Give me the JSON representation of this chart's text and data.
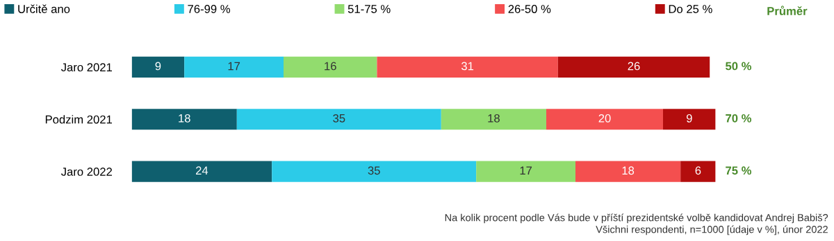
{
  "chart_data": {
    "type": "bar",
    "orientation": "horizontal",
    "stacked": true,
    "data_labels": true,
    "legend": "top",
    "grid": false,
    "categories": [
      "Jaro 2021",
      "Podzim 2021",
      "Jaro 2022"
    ],
    "series": [
      {
        "name": "Určitě ano",
        "color": "#0f5f6e",
        "values": [
          9,
          18,
          24
        ]
      },
      {
        "name": "76-99 %",
        "color": "#2ccbe8",
        "values": [
          17,
          35,
          35
        ]
      },
      {
        "name": "51-75 %",
        "color": "#92dc6e",
        "values": [
          16,
          18,
          17
        ]
      },
      {
        "name": "26-50 %",
        "color": "#f44f4f",
        "values": [
          31,
          20,
          18
        ]
      },
      {
        "name": "Do 25 %",
        "color": "#b30d0d",
        "values": [
          26,
          9,
          6
        ]
      }
    ],
    "annotations": [
      "Průměr",
      "50 %",
      "70 %",
      "75 %",
      "Na kolik procent podle Vás bude v příští prezidentské volbě kandidovat Andrej Babiš?\nVšichni respondenti, n=1000 [údaje v %], únor 2022"
    ]
  }
}
